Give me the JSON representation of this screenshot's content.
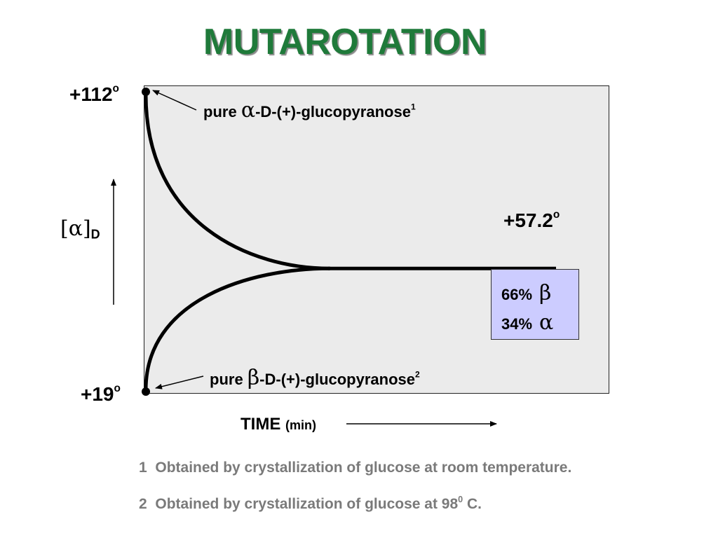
{
  "title": "MUTAROTATION",
  "chart_data": {
    "type": "line",
    "title": "MUTAROTATION",
    "ylabel": "[α]D",
    "ylabel_main": "[α]",
    "ylabel_sub": "D",
    "xlabel": "TIME",
    "xlabel_unit": "(min)",
    "y_tick_labels": [
      {
        "text": "+112",
        "sup": "o",
        "value": 112
      },
      {
        "text": "+57.2",
        "sup": "o",
        "value": 57.2
      },
      {
        "text": "+19",
        "sup": "o",
        "value": 19
      }
    ],
    "ylim": [
      19,
      112
    ],
    "equilibrium_value": 57.2,
    "series": [
      {
        "start": 112,
        "end": 57.2,
        "annotation_prefix": "pure",
        "greek": "α",
        "annotation_suffix": "-D-(+)-glucopyranose",
        "footnote_ref": "1"
      },
      {
        "start": 19,
        "end": 57.2,
        "annotation_prefix": "pure",
        "greek": "β",
        "annotation_suffix": "-D-(+)-glucopyranose",
        "footnote_ref": "2"
      }
    ],
    "grid": false,
    "legend": {
      "placement": "right",
      "background": "#ccccff",
      "entries": [
        {
          "percent": "66%",
          "greek": "β"
        },
        {
          "percent": "34%",
          "greek": "α"
        }
      ]
    }
  },
  "footnotes": [
    {
      "number": "1",
      "text": "Obtained by crystallization of glucose at room temperature."
    },
    {
      "number": "2",
      "text_before": "Obtained by crystallization of glucose at 98",
      "sup": "0",
      "text_after": " C."
    }
  ],
  "colors": {
    "title": "#1f7a3a",
    "plot_background": "#ebebeb",
    "curve": "#000000",
    "footnote": "#7a7a7a",
    "legend_background": "#ccccff"
  }
}
